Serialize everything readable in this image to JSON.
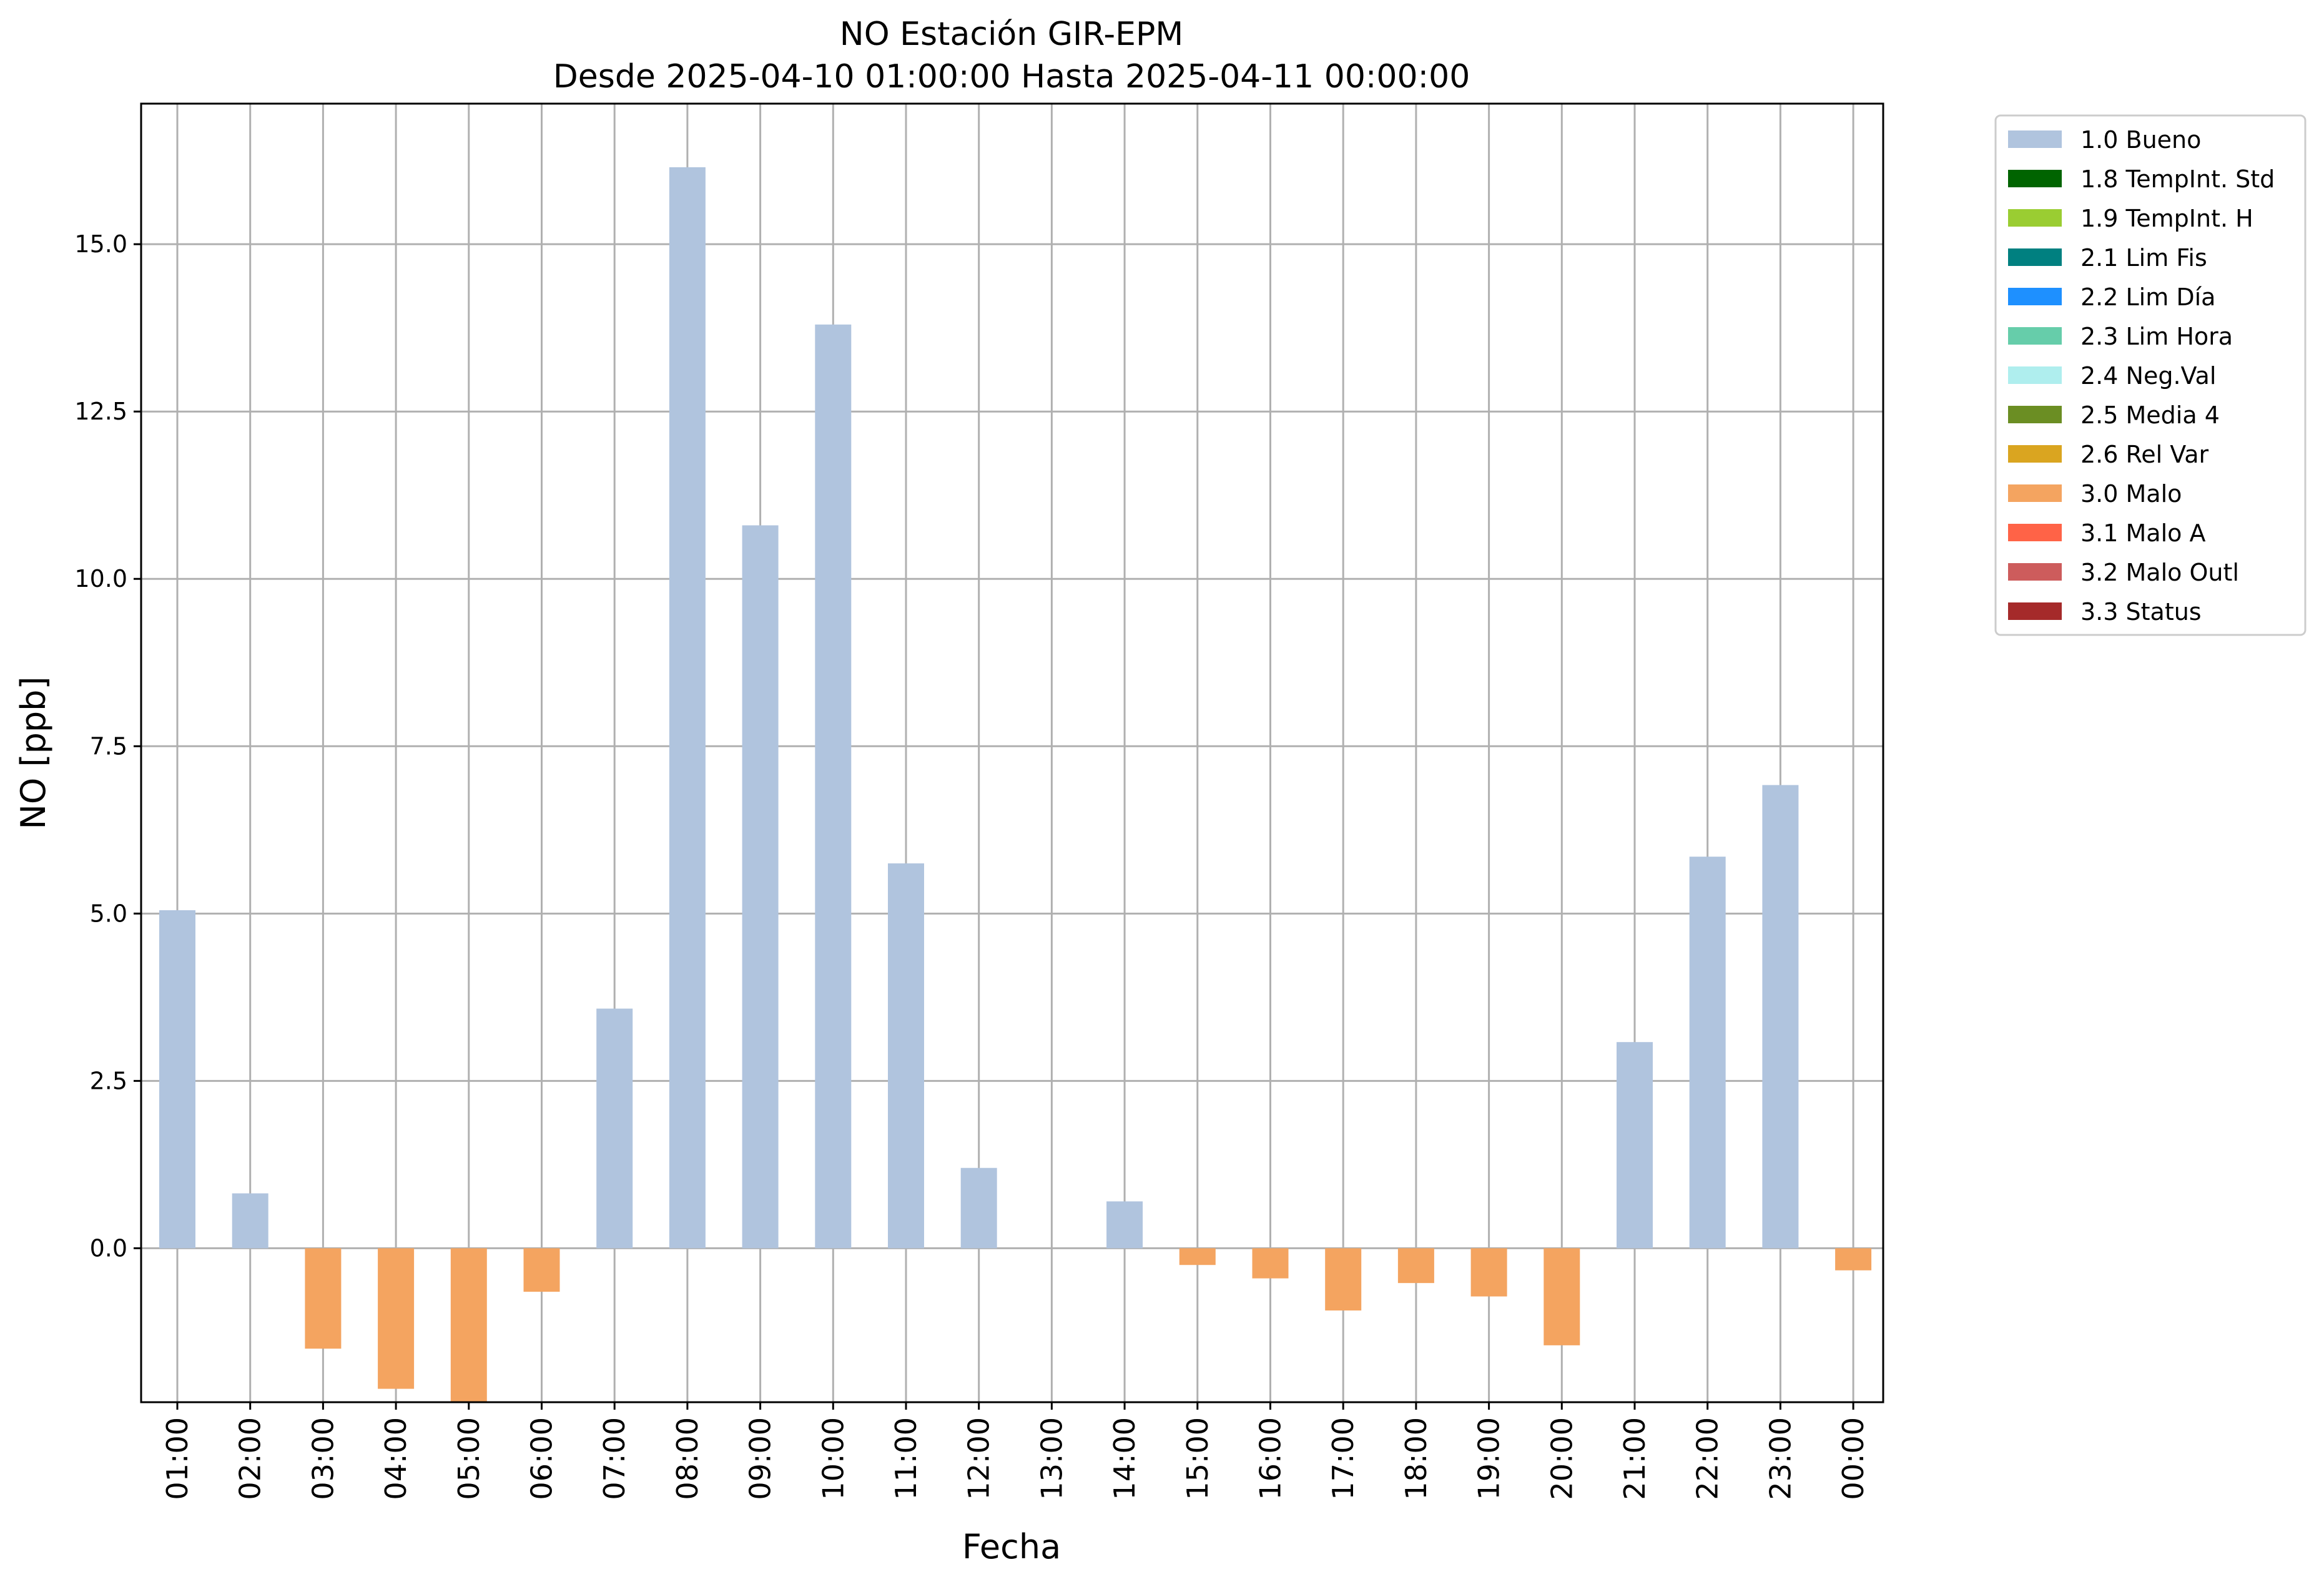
{
  "chart_data": {
    "type": "bar",
    "title": "NO Estación GIR-EPM",
    "subtitle": "Desde 2025-04-10 01:00:00 Hasta 2025-04-11 00:00:00",
    "xlabel": "Fecha",
    "ylabel": "NO [ppb]",
    "ylim": [
      -2.3,
      17.1
    ],
    "yticks": [
      0.0,
      2.5,
      5.0,
      7.5,
      10.0,
      12.5,
      15.0
    ],
    "ytick_labels": [
      "0.0",
      "2.5",
      "5.0",
      "7.5",
      "10.0",
      "12.5",
      "15.0"
    ],
    "grid": true,
    "legend_position": "outside-top-right",
    "categories": [
      "01:00",
      "02:00",
      "03:00",
      "04:00",
      "05:00",
      "06:00",
      "07:00",
      "08:00",
      "09:00",
      "10:00",
      "11:00",
      "12:00",
      "13:00",
      "14:00",
      "15:00",
      "16:00",
      "17:00",
      "18:00",
      "19:00",
      "20:00",
      "21:00",
      "22:00",
      "23:00",
      "00:00"
    ],
    "values": [
      5.05,
      0.82,
      -1.5,
      -2.1,
      -2.3,
      -0.65,
      3.58,
      16.15,
      10.8,
      13.8,
      5.75,
      1.2,
      0.0,
      0.7,
      -0.25,
      -0.45,
      -0.93,
      -0.52,
      -0.72,
      -1.45,
      3.08,
      5.85,
      6.92,
      -0.33
    ],
    "flags": [
      "1.0",
      "1.0",
      "3.0",
      "3.0",
      "3.0",
      "3.0",
      "1.0",
      "1.0",
      "1.0",
      "1.0",
      "1.0",
      "1.0",
      "1.0",
      "1.0",
      "3.0",
      "3.0",
      "3.0",
      "3.0",
      "3.0",
      "3.0",
      "1.0",
      "1.0",
      "1.0",
      "3.0"
    ],
    "legend": [
      {
        "code": "1.0",
        "label": "1.0 Bueno",
        "color": "#b0c4de"
      },
      {
        "code": "1.8",
        "label": "1.8 TempInt. Std",
        "color": "#006400"
      },
      {
        "code": "1.9",
        "label": "1.9 TempInt. H",
        "color": "#9acd32"
      },
      {
        "code": "2.1",
        "label": "2.1 Lim Fis",
        "color": "#008080"
      },
      {
        "code": "2.2",
        "label": "2.2 Lim Día",
        "color": "#1e90ff"
      },
      {
        "code": "2.3",
        "label": "2.3 Lim Hora",
        "color": "#66cdaa"
      },
      {
        "code": "2.4",
        "label": "2.4 Neg.Val",
        "color": "#afeeee"
      },
      {
        "code": "2.5",
        "label": "2.5 Media 4",
        "color": "#6b8e23"
      },
      {
        "code": "2.6",
        "label": "2.6 Rel Var",
        "color": "#daa520"
      },
      {
        "code": "3.0",
        "label": "3.0 Malo",
        "color": "#f4a460"
      },
      {
        "code": "3.1",
        "label": "3.1 Malo A",
        "color": "#ff6347"
      },
      {
        "code": "3.2",
        "label": "3.2 Malo Outl",
        "color": "#cd5c5c"
      },
      {
        "code": "3.3",
        "label": "3.3 Status",
        "color": "#a52a2a"
      }
    ]
  }
}
